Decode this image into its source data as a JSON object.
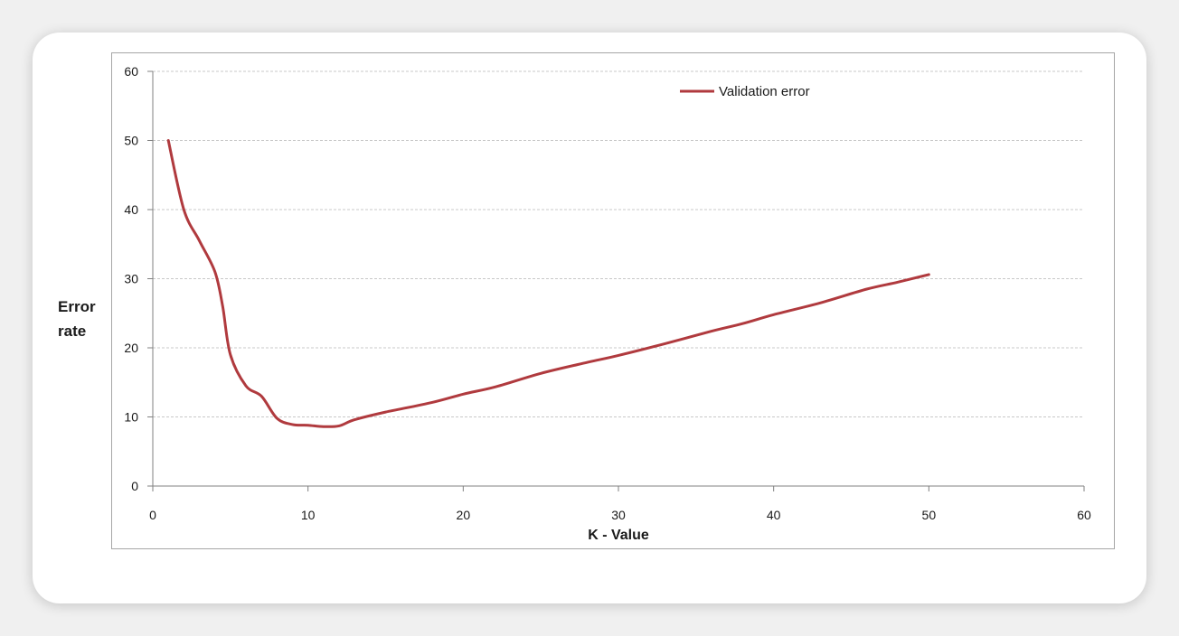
{
  "chart_data": {
    "type": "line",
    "title": "",
    "xlabel": "K - Value",
    "ylabel": "Error rate",
    "xlim": [
      0,
      60
    ],
    "ylim": [
      0,
      60
    ],
    "xticks": [
      0,
      10,
      20,
      30,
      40,
      50,
      60
    ],
    "yticks": [
      0,
      10,
      20,
      30,
      40,
      50,
      60
    ],
    "grid": "horizontal dashed",
    "legend_position": "top-right",
    "colors": {
      "series": "#b03a3e",
      "grid": "#c8c8c8",
      "axis": "#808080"
    },
    "series": [
      {
        "name": "Validation error",
        "x": [
          1,
          2,
          3,
          4,
          4.5,
          5,
          6,
          7,
          8,
          9,
          10,
          11,
          12,
          13,
          15,
          18,
          20,
          22,
          25,
          28,
          30,
          33,
          36,
          38,
          40,
          43,
          46,
          48,
          50
        ],
        "y": [
          50,
          40,
          35.5,
          31,
          26,
          19,
          14.5,
          13,
          9.8,
          8.9,
          8.8,
          8.6,
          8.7,
          9.6,
          10.7,
          12.1,
          13.3,
          14.3,
          16.3,
          17.9,
          18.9,
          20.6,
          22.4,
          23.5,
          24.8,
          26.5,
          28.5,
          29.5,
          30.6
        ]
      }
    ]
  }
}
